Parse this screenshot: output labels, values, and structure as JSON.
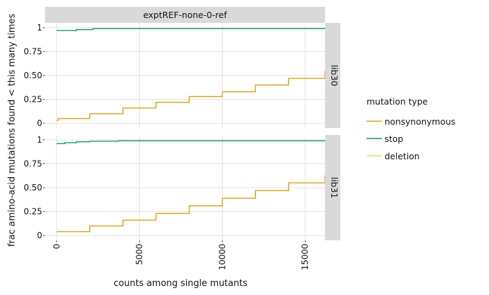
{
  "chart_data": {
    "type": "line",
    "subtype": "step ecdf",
    "column_facet": "exptREF-none-0-ref",
    "row_facets": [
      "lib30",
      "lib31"
    ],
    "xlabel": "counts among single mutants",
    "ylabel": "frac amino-acid mutations found < this many times",
    "xlim": [
      -700,
      16200
    ],
    "ylim": [
      -0.05,
      1.05
    ],
    "xticks": [
      0,
      5000,
      10000,
      15000
    ],
    "xtick_labels": [
      "0",
      "5000",
      "10000",
      "15000"
    ],
    "yticks": [
      0,
      0.25,
      0.5,
      0.75,
      1
    ],
    "ytick_labels": [
      "0",
      "0.25",
      "0.50",
      "0.75",
      "1"
    ],
    "grid": true,
    "legend": {
      "title": "mutation type",
      "placement": "right",
      "entries": [
        {
          "name": "nonsynonymous",
          "color": "#E69F00"
        },
        {
          "name": "stop",
          "color": "#009E73"
        },
        {
          "name": "deletion",
          "color": "#F0E442"
        }
      ]
    },
    "panels": [
      {
        "facet": "lib30",
        "series": [
          {
            "name": "nonsynonymous",
            "color": "#E69F00",
            "x": [
              0,
              100,
              2000,
              4000,
              6000,
              8000,
              10000,
              12000,
              14000,
              16200
            ],
            "y": [
              0.03,
              0.05,
              0.1,
              0.16,
              0.22,
              0.28,
              0.33,
              0.4,
              0.47,
              0.55
            ]
          },
          {
            "name": "stop",
            "color": "#009E73",
            "x": [
              0,
              1000,
              1200,
              2000,
              2200,
              16200
            ],
            "y": [
              0.97,
              0.97,
              0.98,
              0.98,
              0.99,
              0.99
            ]
          },
          {
            "name": "deletion",
            "color": "#F0E442",
            "x": [],
            "y": []
          }
        ]
      },
      {
        "facet": "lib31",
        "series": [
          {
            "name": "nonsynonymous",
            "color": "#E69F00",
            "x": [
              0,
              2000,
              4000,
              6000,
              8000,
              10000,
              12000,
              14000,
              16200
            ],
            "y": [
              0.04,
              0.1,
              0.16,
              0.23,
              0.31,
              0.39,
              0.47,
              0.55,
              0.63
            ]
          },
          {
            "name": "stop",
            "color": "#009E73",
            "x": [
              0,
              300,
              500,
              1000,
              1200,
              1800,
              2000,
              3500,
              3700,
              16200
            ],
            "y": [
              0.96,
              0.96,
              0.97,
              0.97,
              0.98,
              0.98,
              0.985,
              0.985,
              0.99,
              0.99
            ]
          },
          {
            "name": "deletion",
            "color": "#F0E442",
            "x": [],
            "y": []
          }
        ]
      }
    ]
  }
}
